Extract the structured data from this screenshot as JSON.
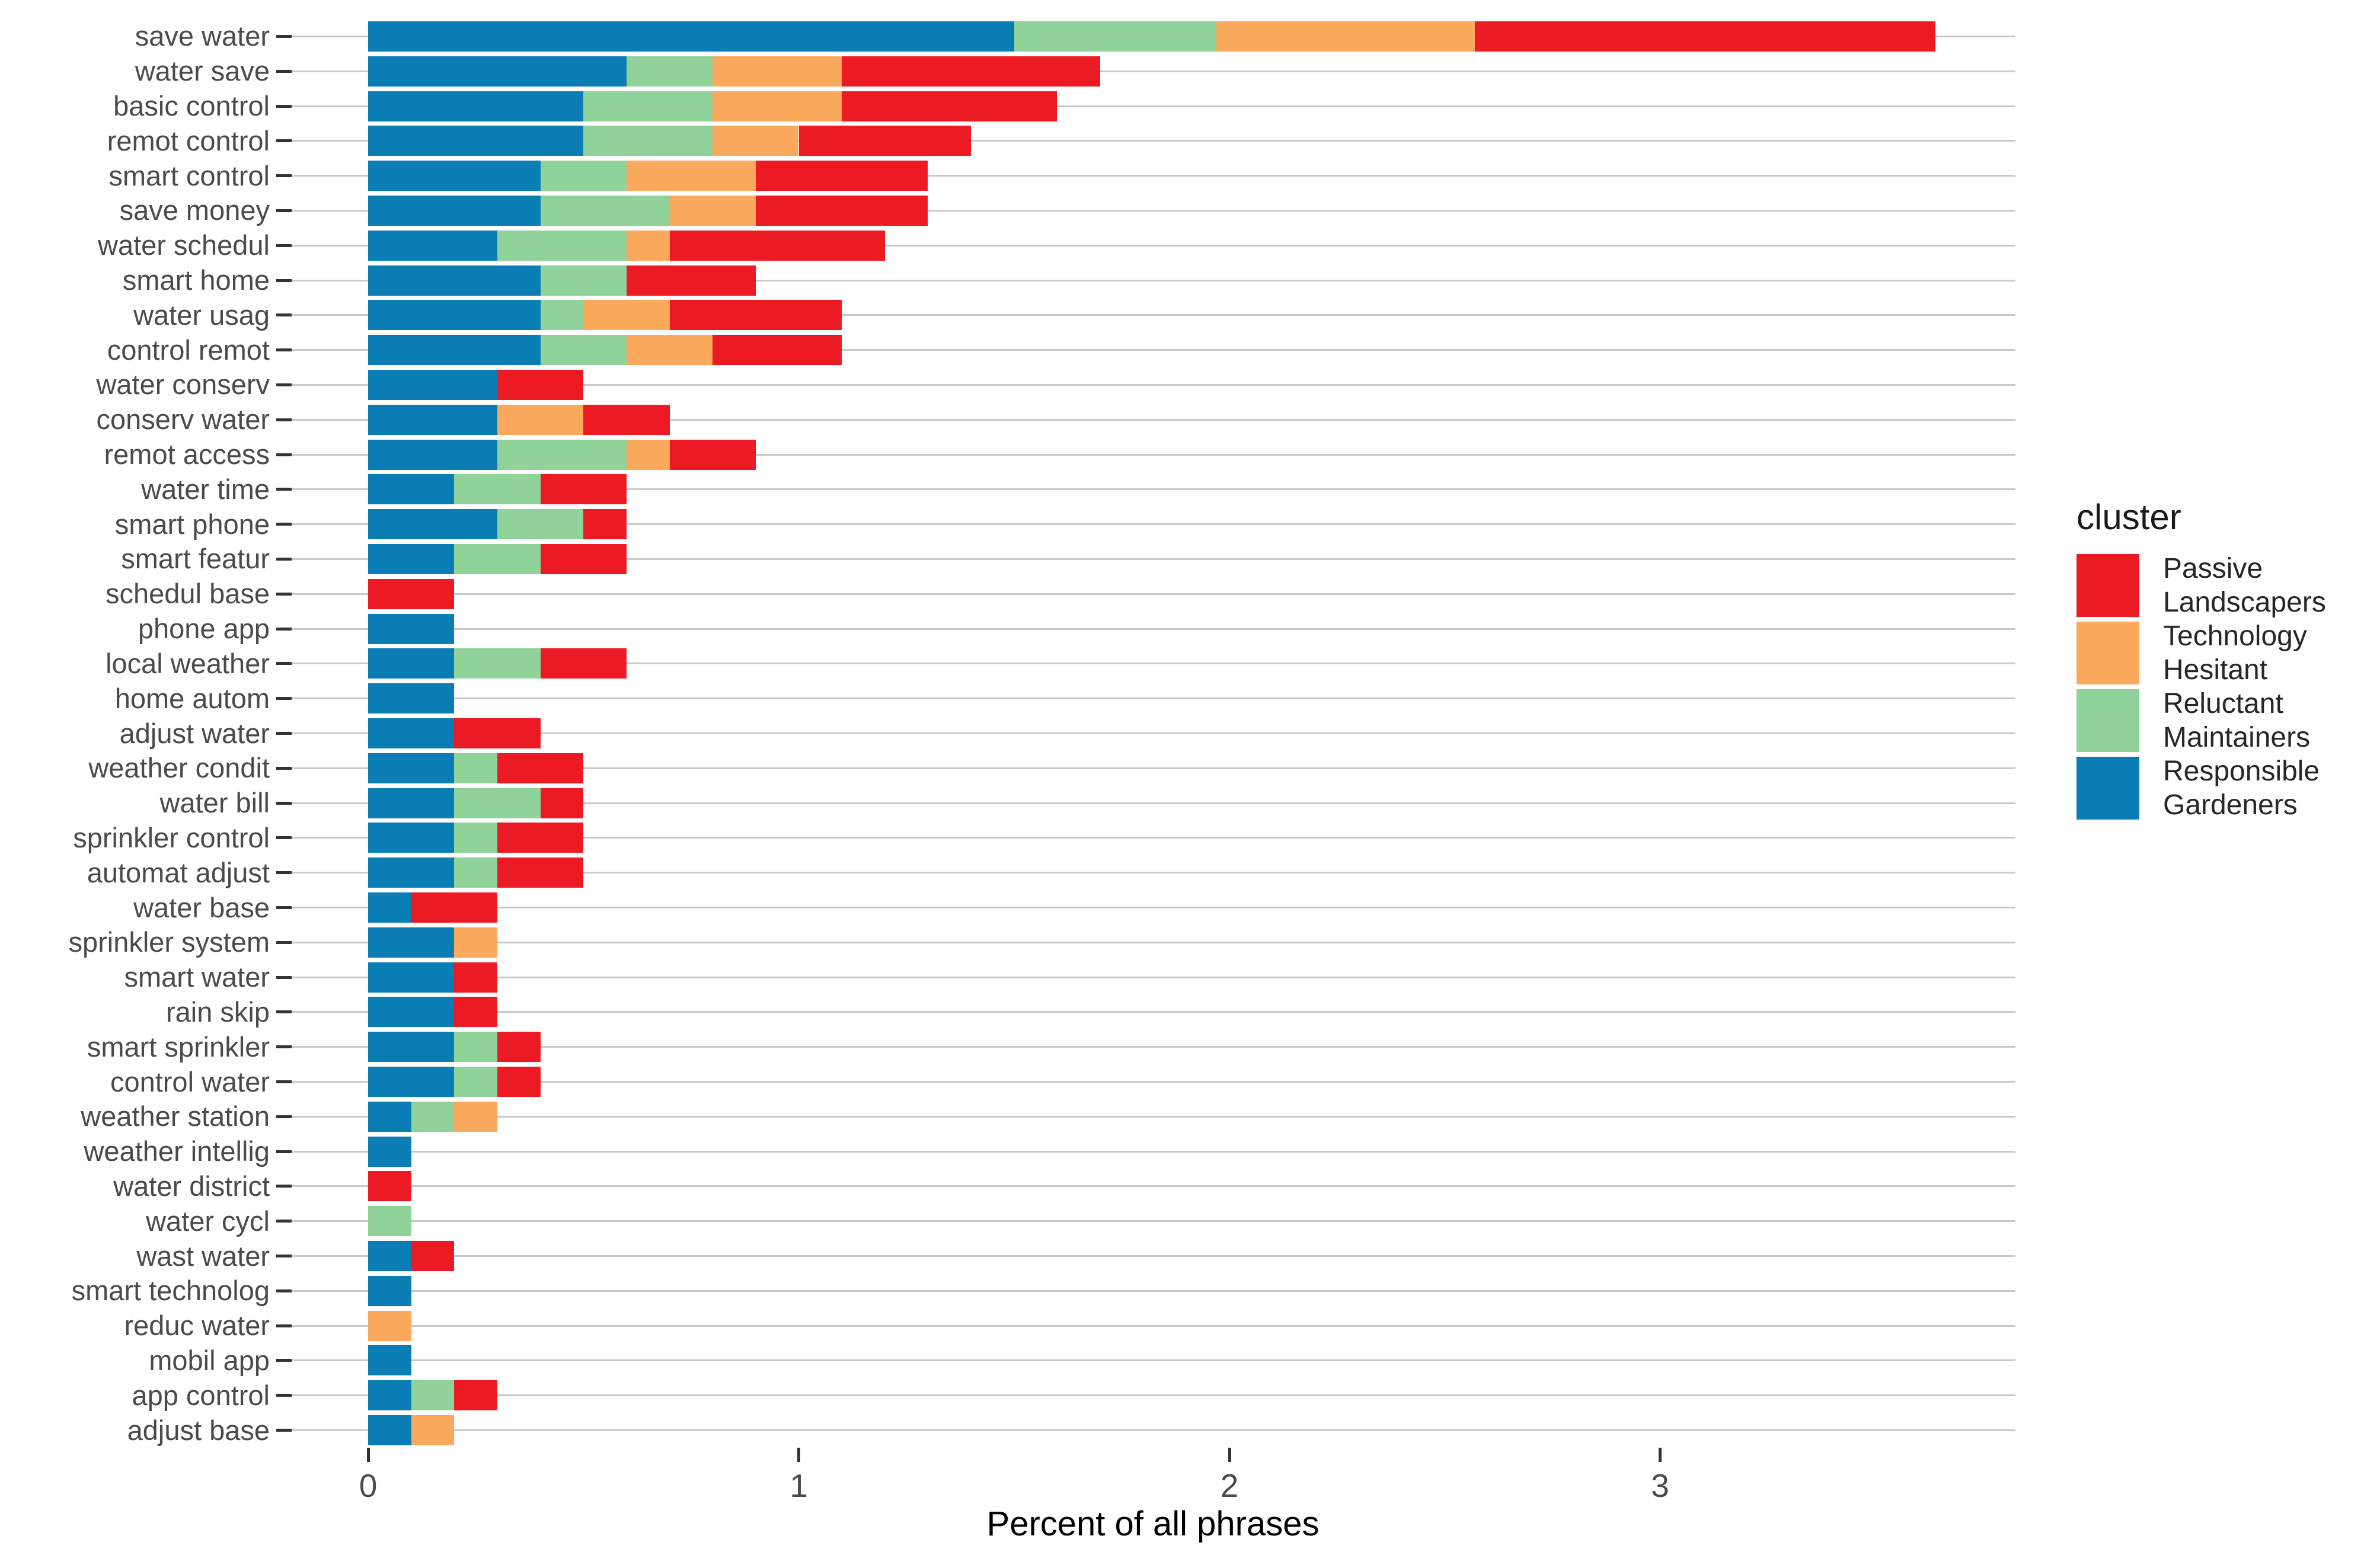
{
  "figure": {
    "xlabel": "Percent of all phrases",
    "legend_title": "cluster"
  },
  "chart_data": {
    "type": "bar",
    "orientation": "horizontal",
    "stacked": true,
    "title": "",
    "xlabel": "Percent of all phrases",
    "ylabel": "",
    "xlim": [
      0,
      3.85
    ],
    "xticks": [
      "0",
      "1",
      "2",
      "3"
    ],
    "xtick_values": [
      0,
      1,
      2,
      3
    ],
    "grid": "horizontal-major-only",
    "legend_position": "right",
    "legend_title": "cluster",
    "legend": [
      {
        "name": "Passive Landscapers",
        "color": "#EC1B23"
      },
      {
        "name": "Technology Hesitant",
        "color": "#FBA95D"
      },
      {
        "name": "Reluctant Maintainers",
        "color": "#90D39A"
      },
      {
        "name": "Responsible Gardeners",
        "color": "#0B7DB5"
      }
    ],
    "categories": [
      "save water",
      "water save",
      "basic control",
      "remot control",
      "smart control",
      "save money",
      "water schedul",
      "smart home",
      "water usag",
      "control remot",
      "water conserv",
      "conserv water",
      "remot access",
      "water time",
      "smart phone",
      "smart featur",
      "schedul base",
      "phone app",
      "local weather",
      "home autom",
      "adjust water",
      "weather condit",
      "water bill",
      "sprinkler control",
      "automat adjust",
      "water base",
      "sprinkler system",
      "smart water",
      "rain skip",
      "smart sprinkler",
      "control water",
      "weather station",
      "weather intellig",
      "water district",
      "water cycl",
      "wast water",
      "smart technolog",
      "reduc water",
      "mobil app",
      "app control",
      "adjust base"
    ],
    "series": [
      {
        "name": "Responsible Gardeners",
        "color": "#0B7DB5",
        "values": [
          1.5,
          0.6,
          0.5,
          0.5,
          0.4,
          0.4,
          0.3,
          0.4,
          0.4,
          0.4,
          0.3,
          0.3,
          0.3,
          0.2,
          0.3,
          0.2,
          0,
          0.2,
          0.2,
          0.2,
          0.2,
          0.2,
          0.2,
          0.2,
          0.2,
          0.1,
          0.2,
          0.2,
          0.2,
          0.2,
          0.2,
          0.1,
          0.1,
          0,
          0,
          0.1,
          0.1,
          0,
          0.1,
          0.1,
          0.1
        ]
      },
      {
        "name": "Reluctant Maintainers",
        "color": "#90D39A",
        "values": [
          0.47,
          0.2,
          0.3,
          0.3,
          0.2,
          0.3,
          0.3,
          0.2,
          0.1,
          0.2,
          0,
          0,
          0.3,
          0.2,
          0.2,
          0.2,
          0,
          0,
          0.2,
          0,
          0,
          0.1,
          0.2,
          0.1,
          0.1,
          0,
          0,
          0,
          0,
          0.1,
          0.1,
          0.1,
          0,
          0,
          0.1,
          0,
          0,
          0,
          0,
          0.1,
          0
        ]
      },
      {
        "name": "Technology Hesitant",
        "color": "#FBA95D",
        "values": [
          0.6,
          0.3,
          0.3,
          0.2,
          0.3,
          0.2,
          0.1,
          0,
          0.2,
          0.2,
          0,
          0.2,
          0.1,
          0,
          0,
          0,
          0,
          0,
          0,
          0,
          0,
          0,
          0,
          0,
          0,
          0,
          0.1,
          0,
          0,
          0,
          0,
          0.1,
          0,
          0,
          0,
          0,
          0,
          0.1,
          0,
          0,
          0.1
        ]
      },
      {
        "name": "Passive Landscapers",
        "color": "#EC1B23",
        "values": [
          1.07,
          0.6,
          0.5,
          0.4,
          0.4,
          0.4,
          0.5,
          0.3,
          0.4,
          0.3,
          0.2,
          0.2,
          0.2,
          0.2,
          0.1,
          0.2,
          0.2,
          0,
          0.2,
          0,
          0.2,
          0.2,
          0.1,
          0.2,
          0.2,
          0.2,
          0,
          0.1,
          0.1,
          0.1,
          0.1,
          0,
          0,
          0.1,
          0,
          0.1,
          0,
          0,
          0,
          0.1,
          0
        ]
      }
    ]
  }
}
